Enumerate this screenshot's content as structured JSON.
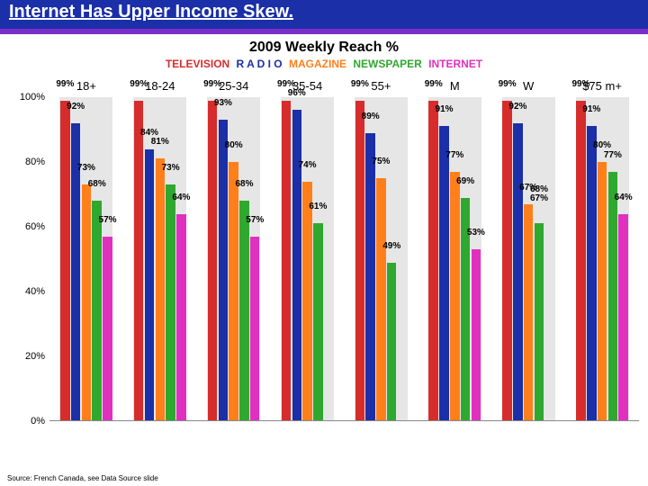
{
  "title": "Internet Has Upper Income Skew.",
  "subtitle": "2009 Weekly Reach %",
  "source": "Source: French Canada, see Data Source slide",
  "legend_items": [
    {
      "label": "TELEVISION",
      "color": "#d62c2c"
    },
    {
      "label": "R A D I O",
      "color": "#1a2fa8"
    },
    {
      "label": "MAGAZINE",
      "color": "#ff7f1a"
    },
    {
      "label": "NEWSPAPER",
      "color": "#2fa82f"
    },
    {
      "label": "INTERNET",
      "color": "#e030c0"
    }
  ],
  "chart": {
    "type": "grouped-bar",
    "ylim": [
      0,
      100
    ],
    "ytick_step": 20,
    "y_suffix": "%",
    "background_color": "#ffffff",
    "group_bg_color": "#e6e6e6",
    "group_width_pct": 9.0,
    "bar_width_pct": 1.6,
    "series_colors": [
      "#d62c2c",
      "#1a2fa8",
      "#ff7f1a",
      "#2fa82f",
      "#e030c0"
    ],
    "categories": [
      "18+",
      "18-24",
      "25-34",
      "35-54",
      "55+",
      "M",
      "W",
      "$75 m+"
    ],
    "values": [
      [
        99,
        92,
        73,
        68,
        57
      ],
      [
        99,
        84,
        81,
        73,
        64
      ],
      [
        99,
        93,
        80,
        68,
        57
      ],
      [
        99,
        96,
        74,
        61,
        null
      ],
      [
        99,
        89,
        75,
        49,
        null
      ],
      [
        99,
        91,
        77,
        69,
        53
      ],
      [
        99,
        92,
        67,
        61,
        null
      ],
      [
        99,
        91,
        80,
        77,
        64
      ]
    ],
    "label_overrides": {
      "6-3": "68%\n67%"
    }
  }
}
